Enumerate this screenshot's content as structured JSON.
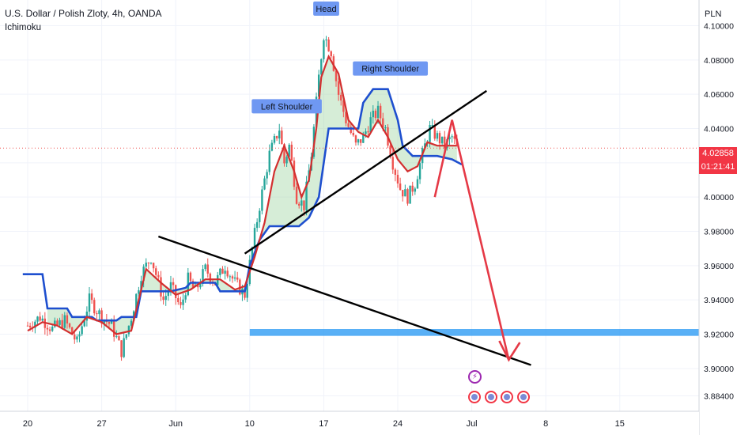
{
  "header": {
    "symbol_line": "U.S. Dollar / Polish Zloty, 4h, OANDA",
    "indicator": "Ichimoku"
  },
  "price_axis": {
    "currency": "PLN",
    "last_price": "4.02858",
    "countdown": "01:21:41"
  },
  "colors": {
    "bull": "#26a69a",
    "bear": "#ef5350",
    "conversion_line": "#d32f2f",
    "base_line": "#1e4fcf",
    "cloud_fill": "#a5d6a7",
    "trendline": "#000000",
    "target_arrow": "#e53946",
    "target_zone": "#2196f3",
    "label_bg": "#6f98f2"
  },
  "chart_data": {
    "type": "candlestick",
    "ylim": [
      3.875,
      4.115
    ],
    "y_ticks": [
      "4.10000",
      "4.08000",
      "4.06000",
      "4.04000",
      "4.02000",
      "4.00000",
      "3.98000",
      "3.96000",
      "3.94000",
      "3.92000",
      "3.90000",
      "3.88400"
    ],
    "y_tick_values": [
      4.1,
      4.08,
      4.06,
      4.04,
      4.02,
      4.0,
      3.98,
      3.96,
      3.94,
      3.92,
      3.9,
      3.884
    ],
    "x_ticks": [
      "20",
      "27",
      "Jun",
      "10",
      "17",
      "24",
      "Jul",
      "8",
      "15"
    ],
    "x_tick_index": [
      0,
      30,
      60,
      90,
      120,
      150,
      180,
      210,
      240
    ],
    "candles_per_day": 6,
    "close_anchors": [
      [
        0,
        3.925
      ],
      [
        5,
        3.93
      ],
      [
        10,
        3.923
      ],
      [
        15,
        3.928
      ],
      [
        20,
        3.915
      ],
      [
        25,
        3.94
      ],
      [
        30,
        3.93
      ],
      [
        34,
        3.925
      ],
      [
        38,
        3.91
      ],
      [
        42,
        3.93
      ],
      [
        46,
        3.955
      ],
      [
        50,
        3.965
      ],
      [
        55,
        3.94
      ],
      [
        58,
        3.948
      ],
      [
        62,
        3.935
      ],
      [
        65,
        3.952
      ],
      [
        68,
        3.945
      ],
      [
        72,
        3.958
      ],
      [
        76,
        3.95
      ],
      [
        80,
        3.96
      ],
      [
        84,
        3.95
      ],
      [
        88,
        3.943
      ],
      [
        91,
        3.97
      ],
      [
        94,
        3.995
      ],
      [
        98,
        4.025
      ],
      [
        102,
        4.04
      ],
      [
        104,
        4.02
      ],
      [
        106,
        4.03
      ],
      [
        109,
        4.0
      ],
      [
        112,
        3.995
      ],
      [
        115,
        4.025
      ],
      [
        118,
        4.07
      ],
      [
        120,
        4.095
      ],
      [
        123,
        4.085
      ],
      [
        126,
        4.06
      ],
      [
        129,
        4.045
      ],
      [
        133,
        4.03
      ],
      [
        136,
        4.035
      ],
      [
        139,
        4.045
      ],
      [
        142,
        4.05
      ],
      [
        145,
        4.04
      ],
      [
        148,
        4.02
      ],
      [
        151,
        4.005
      ],
      [
        154,
        4.0
      ],
      [
        157,
        4.008
      ],
      [
        160,
        4.025
      ],
      [
        163,
        4.04
      ],
      [
        166,
        4.035
      ],
      [
        169,
        4.03
      ],
      [
        172,
        4.035
      ],
      [
        174,
        4.029
      ]
    ],
    "conversion_line": [
      [
        0,
        3.922
      ],
      [
        6,
        3.927
      ],
      [
        12,
        3.925
      ],
      [
        18,
        3.92
      ],
      [
        24,
        3.93
      ],
      [
        30,
        3.927
      ],
      [
        36,
        3.92
      ],
      [
        42,
        3.922
      ],
      [
        48,
        3.958
      ],
      [
        54,
        3.95
      ],
      [
        60,
        3.943
      ],
      [
        66,
        3.946
      ],
      [
        72,
        3.952
      ],
      [
        78,
        3.952
      ],
      [
        84,
        3.946
      ],
      [
        88,
        3.948
      ],
      [
        92,
        3.965
      ],
      [
        96,
        3.985
      ],
      [
        100,
        4.015
      ],
      [
        104,
        4.03
      ],
      [
        108,
        4.015
      ],
      [
        111,
        4.0
      ],
      [
        114,
        4.01
      ],
      [
        117,
        4.04
      ],
      [
        119,
        4.07
      ],
      [
        122,
        4.082
      ],
      [
        126,
        4.072
      ],
      [
        130,
        4.045
      ],
      [
        134,
        4.038
      ],
      [
        138,
        4.035
      ],
      [
        142,
        4.045
      ],
      [
        146,
        4.035
      ],
      [
        150,
        4.022
      ],
      [
        154,
        4.015
      ],
      [
        158,
        4.018
      ],
      [
        162,
        4.032
      ],
      [
        166,
        4.03
      ],
      [
        170,
        4.03
      ],
      [
        174,
        4.03
      ]
    ],
    "base_line": [
      [
        -2,
        3.955
      ],
      [
        6,
        3.955
      ],
      [
        8,
        3.935
      ],
      [
        16,
        3.935
      ],
      [
        18,
        3.93
      ],
      [
        26,
        3.93
      ],
      [
        28,
        3.928
      ],
      [
        36,
        3.928
      ],
      [
        38,
        3.93
      ],
      [
        44,
        3.93
      ],
      [
        46,
        3.945
      ],
      [
        56,
        3.945
      ],
      [
        58,
        3.945
      ],
      [
        64,
        3.947
      ],
      [
        66,
        3.95
      ],
      [
        76,
        3.95
      ],
      [
        78,
        3.945
      ],
      [
        88,
        3.945
      ],
      [
        90,
        3.96
      ],
      [
        94,
        3.975
      ],
      [
        98,
        3.983
      ],
      [
        110,
        3.983
      ],
      [
        114,
        3.988
      ],
      [
        118,
        4.0
      ],
      [
        122,
        4.04
      ],
      [
        134,
        4.04
      ],
      [
        136,
        4.055
      ],
      [
        140,
        4.063
      ],
      [
        146,
        4.063
      ],
      [
        150,
        4.045
      ],
      [
        152,
        4.03
      ],
      [
        156,
        4.024
      ],
      [
        166,
        4.024
      ],
      [
        172,
        4.022
      ],
      [
        176,
        4.019
      ]
    ],
    "annotations": [
      {
        "text": "Left Shoulder",
        "x_index": 105,
        "y": 4.053
      },
      {
        "text": "Head",
        "x_index": 121,
        "y": 4.11
      },
      {
        "text": "Right Shoulder",
        "x_index": 147,
        "y": 4.075
      }
    ],
    "neckline": [
      [
        88,
        3.967
      ],
      [
        186,
        4.062
      ]
    ],
    "descending_trendline": [
      [
        53,
        3.977
      ],
      [
        204,
        3.902
      ]
    ],
    "target_zone": {
      "x_start_index": 90,
      "y_top": 3.923,
      "y_bottom": 3.919
    },
    "target_arrow": [
      [
        172,
        4.045
      ],
      [
        195,
        3.905
      ]
    ],
    "last_price_line": 4.0286,
    "event_icons": 4
  }
}
